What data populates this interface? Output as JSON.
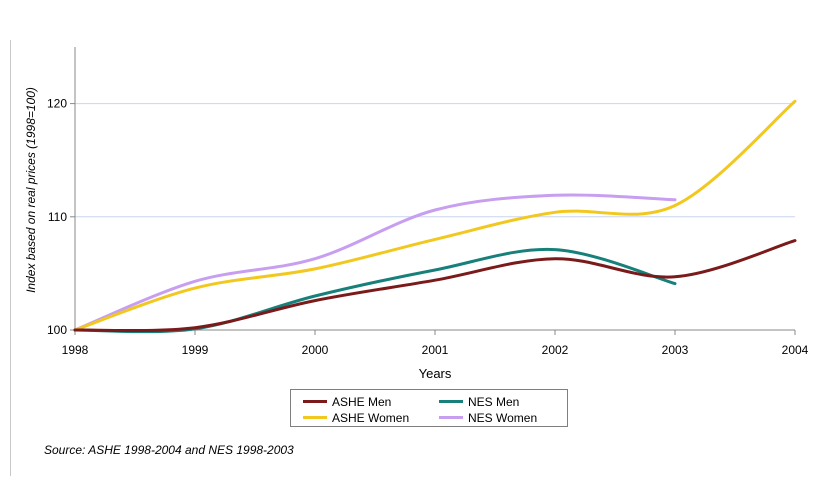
{
  "chart_data": {
    "type": "line",
    "title": "",
    "xlabel": "Years",
    "ylabel": "Index based on real prices (1998=100)",
    "x": [
      1998,
      1999,
      2000,
      2001,
      2002,
      2003,
      2004
    ],
    "x_tick_labels": [
      "1998",
      "1999",
      "2000",
      "2001",
      "2002",
      "2003",
      "2004"
    ],
    "y_tick_labels": [
      "100",
      "110",
      "120"
    ],
    "ylim": [
      100,
      125
    ],
    "yticks": [
      100,
      110,
      120
    ],
    "grid": "horizontal",
    "legend_position": "bottom",
    "series": [
      {
        "name": "ASHE Men",
        "color": "#7b1a1a",
        "points": [
          [
            1998,
            100.0
          ],
          [
            1999,
            100.2
          ],
          [
            2000,
            102.6
          ],
          [
            2001,
            104.4
          ],
          [
            2002,
            106.3
          ],
          [
            2003,
            104.7
          ],
          [
            2004,
            107.9
          ]
        ]
      },
      {
        "name": "NES Men",
        "color": "#17807a",
        "points": [
          [
            1998,
            100.0
          ],
          [
            1999,
            100.1
          ],
          [
            2000,
            103.0
          ],
          [
            2001,
            105.3
          ],
          [
            2002,
            107.1
          ],
          [
            2003,
            104.1
          ]
        ]
      },
      {
        "name": "ASHE Women",
        "color": "#f2c81e",
        "points": [
          [
            1998,
            100.0
          ],
          [
            1999,
            103.7
          ],
          [
            2000,
            105.4
          ],
          [
            2001,
            108.0
          ],
          [
            2002,
            110.4
          ],
          [
            2003,
            111.0
          ],
          [
            2004,
            120.2
          ]
        ]
      },
      {
        "name": "NES Women",
        "color": "#c79ef0",
        "points": [
          [
            1998,
            100.0
          ],
          [
            1999,
            104.3
          ],
          [
            2000,
            106.3
          ],
          [
            2001,
            110.6
          ],
          [
            2002,
            111.9
          ],
          [
            2003,
            111.5
          ]
        ]
      }
    ]
  },
  "legend": {
    "items": [
      {
        "label": "ASHE Men",
        "color": "#7b1a1a"
      },
      {
        "label": "NES Men",
        "color": "#17807a"
      },
      {
        "label": "ASHE Women",
        "color": "#f2c81e"
      },
      {
        "label": "NES Women",
        "color": "#c79ef0"
      }
    ]
  },
  "source_note": "Source: ASHE 1998-2004 and NES 1998-2003"
}
